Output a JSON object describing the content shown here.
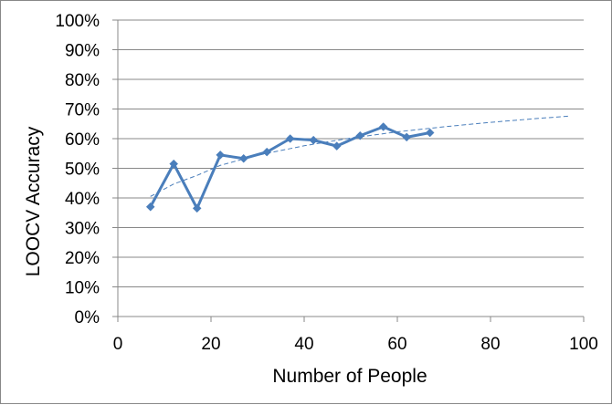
{
  "chart_data": {
    "type": "line",
    "xlabel": "Number of People",
    "ylabel": "LOOCV Accuracy",
    "xlim": [
      0,
      100
    ],
    "ylim": [
      0,
      100
    ],
    "x_ticks": [
      0,
      20,
      40,
      60,
      80,
      100
    ],
    "y_ticks": [
      0,
      10,
      20,
      30,
      40,
      50,
      60,
      70,
      80,
      90,
      100
    ],
    "y_tick_suffix": "%",
    "grid": "horizontal",
    "legend": "none",
    "series": [
      {
        "marker": "diamond",
        "color": "#4a7ebb",
        "points": [
          {
            "x": 7,
            "y": 37
          },
          {
            "x": 12,
            "y": 51.5
          },
          {
            "x": 17,
            "y": 36.5
          },
          {
            "x": 22,
            "y": 54.5
          },
          {
            "x": 27,
            "y": 53.3
          },
          {
            "x": 32,
            "y": 55.5
          },
          {
            "x": 37,
            "y": 60
          },
          {
            "x": 42,
            "y": 59.5
          },
          {
            "x": 47,
            "y": 57.5
          },
          {
            "x": 52,
            "y": 61
          },
          {
            "x": 57,
            "y": 64
          },
          {
            "x": 62,
            "y": 60.5
          },
          {
            "x": 67,
            "y": 62
          }
        ]
      }
    ],
    "trendline": {
      "type": "logarithmic",
      "style": "dashed",
      "color": "#4a7ebb",
      "points": [
        {
          "x": 7,
          "y": 40.5
        },
        {
          "x": 12,
          "y": 44.7
        },
        {
          "x": 17,
          "y": 47.6
        },
        {
          "x": 22,
          "y": 51
        },
        {
          "x": 30,
          "y": 54.4
        },
        {
          "x": 40,
          "y": 57.6
        },
        {
          "x": 50,
          "y": 60.2
        },
        {
          "x": 60,
          "y": 62.3
        },
        {
          "x": 70,
          "y": 64
        },
        {
          "x": 80,
          "y": 65.5
        },
        {
          "x": 90,
          "y": 66.8
        },
        {
          "x": 97,
          "y": 67.6
        }
      ]
    }
  }
}
